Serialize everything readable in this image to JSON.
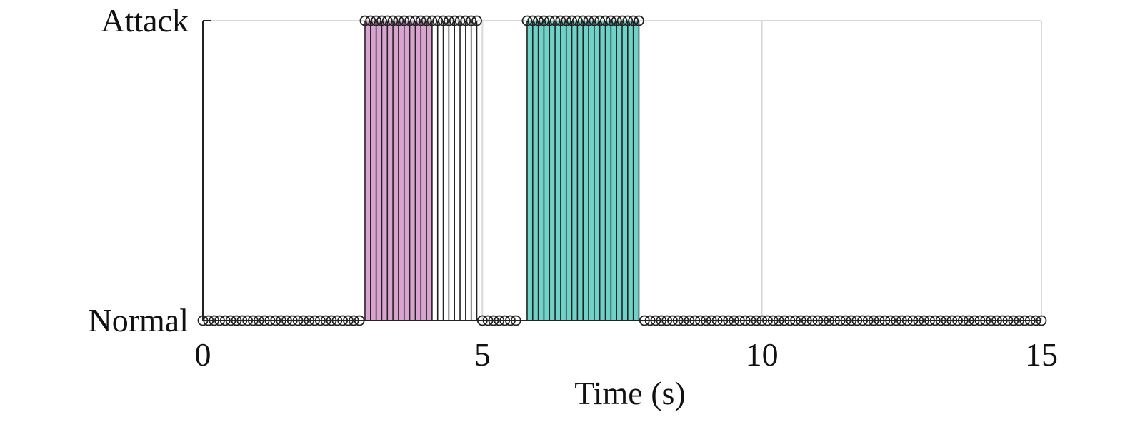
{
  "chart_data": {
    "type": "stem",
    "title": "",
    "xlabel": "Time (s)",
    "ylabel": "",
    "xlim": [
      0,
      15
    ],
    "x_ticks": [
      0,
      5,
      10,
      15
    ],
    "y_ticks": [
      {
        "value": 0,
        "label": "Normal"
      },
      {
        "value": 1,
        "label": "Attack"
      }
    ],
    "grid": true,
    "sample_interval": 0.1,
    "samples": [
      {
        "x_start": 0.0,
        "x_end": 2.8,
        "state": 0
      },
      {
        "x_start": 2.9,
        "x_end": 4.9,
        "state": 1
      },
      {
        "x_start": 5.0,
        "x_end": 5.6,
        "state": 0
      },
      {
        "x_start": 5.8,
        "x_end": 7.8,
        "state": 1
      },
      {
        "x_start": 7.9,
        "x_end": 15.0,
        "state": 0
      }
    ],
    "shaded_regions": [
      {
        "x_start": 2.9,
        "x_end": 4.1,
        "color": "#d8a3cf"
      },
      {
        "x_start": 5.8,
        "x_end": 7.8,
        "color": "#6fd2c9"
      }
    ],
    "colors": {
      "stem": "#222222",
      "grid": "#d9d9d9",
      "axis": "#222222"
    }
  }
}
